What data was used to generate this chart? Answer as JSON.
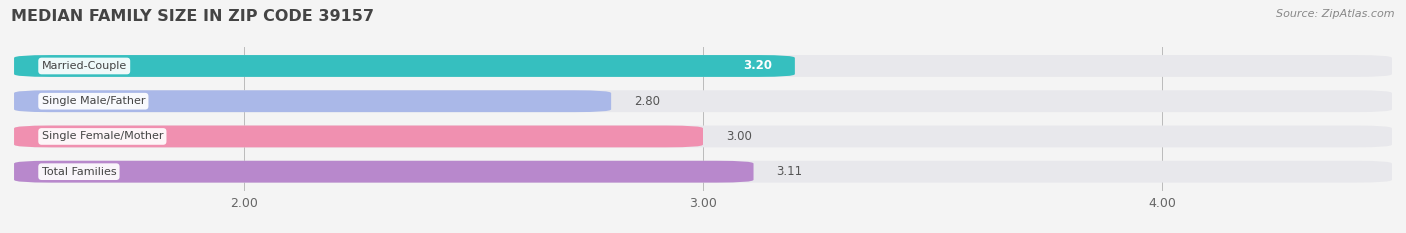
{
  "title": "MEDIAN FAMILY SIZE IN ZIP CODE 39157",
  "source": "Source: ZipAtlas.com",
  "categories": [
    "Married-Couple",
    "Single Male/Father",
    "Single Female/Mother",
    "Total Families"
  ],
  "values": [
    3.2,
    2.8,
    3.0,
    3.11
  ],
  "bar_colors": [
    "#36bfbf",
    "#aab8e8",
    "#f090b0",
    "#b888cc"
  ],
  "bar_bg_color": "#e8e8ec",
  "value_color_inside": "#ffffff",
  "value_color_outside": "#555555",
  "value_label_inside": [
    true,
    false,
    false,
    false
  ],
  "xlim_left": 1.5,
  "xlim_right": 4.5,
  "xticks": [
    2.0,
    3.0,
    4.0
  ],
  "xtick_labels": [
    "2.00",
    "3.00",
    "4.00"
  ],
  "background_color": "#f4f4f4",
  "bar_height": 0.62,
  "bar_gap": 0.12,
  "label_box_color": "#ffffff",
  "figsize": [
    14.06,
    2.33
  ],
  "dpi": 100
}
